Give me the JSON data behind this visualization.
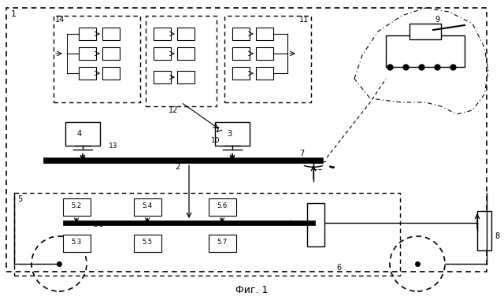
{
  "title": "Фиг. 1",
  "bg_color": "#ffffff",
  "line_color": "#000000",
  "dash_color": "#555555",
  "fig_width": 6.4,
  "fig_height": 3.81
}
